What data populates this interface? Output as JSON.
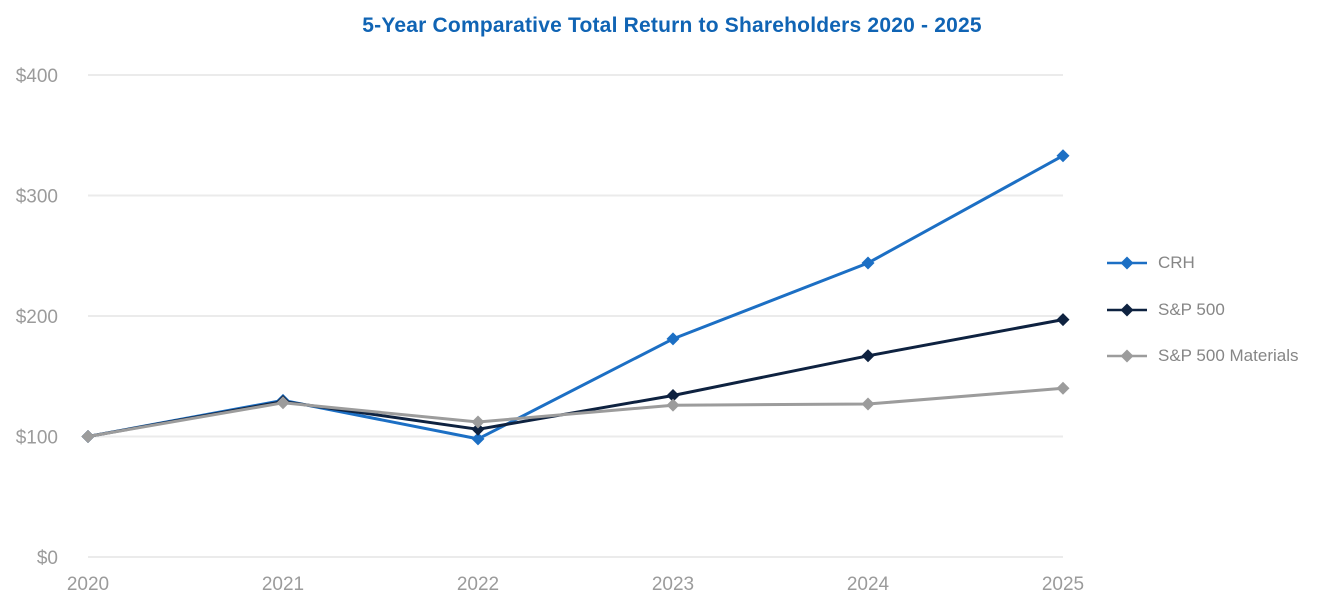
{
  "chart_data": {
    "type": "line",
    "title": "5-Year Comparative Total Return to Shareholders 2020 - 2025",
    "title_color": "#1064b4",
    "categories": [
      "2020",
      "2021",
      "2022",
      "2023",
      "2024",
      "2025"
    ],
    "series": [
      {
        "name": "CRH",
        "color": "#1c6fc4",
        "values": [
          100,
          130,
          98,
          181,
          244,
          333
        ]
      },
      {
        "name": "S&P 500",
        "color": "#0e2240",
        "values": [
          100,
          129,
          106,
          134,
          167,
          197
        ]
      },
      {
        "name": "S&P 500 Materials",
        "color": "#9c9c9c",
        "values": [
          100,
          128,
          112,
          126,
          127,
          140
        ]
      }
    ],
    "xlabel": "",
    "ylabel": "",
    "ylim": [
      0,
      400
    ],
    "y_ticks": [
      "$0",
      "$100",
      "$200",
      "$300",
      "$400"
    ],
    "y_tick_values": [
      0,
      100,
      200,
      300,
      400
    ],
    "marker": "diamond",
    "grid": "horizontal",
    "gridline_color": "#ebebeb",
    "axis_label_color": "#9b9b9b",
    "legend_position": "right",
    "legend_text_color": "#868686",
    "background": "#ffffff"
  }
}
